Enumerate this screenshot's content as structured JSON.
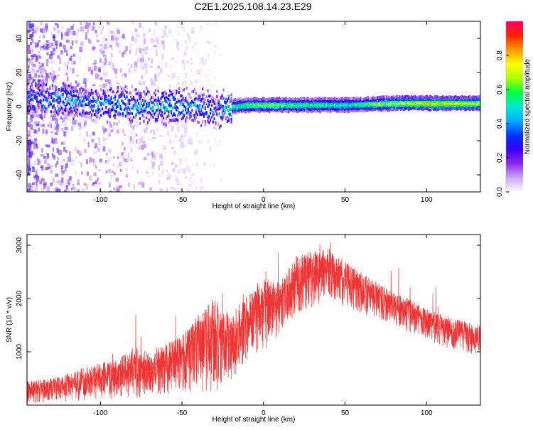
{
  "title": "C2E1.2025.108.14.23.E29",
  "chart_data": [
    {
      "type": "heatmap",
      "xlabel": "Height of straight line (km)",
      "ylabel": "Frequency (Hz)",
      "xlim": [
        -145,
        133
      ],
      "ylim": [
        -50,
        50
      ],
      "xticks": [
        -100,
        -50,
        0,
        50,
        100
      ],
      "yticks": [
        -40,
        -20,
        0,
        20,
        40
      ],
      "colorbar": {
        "label": "Normalized spectral amplitude",
        "range": [
          0,
          1
        ],
        "ticks": [
          "0.0",
          "0.2",
          "0.4",
          "0.6",
          "0.8"
        ],
        "colormap": [
          "#ffffff",
          "#c9a8ff",
          "#8a2be2",
          "#3b00ff",
          "#0033ff",
          "#00b0ff",
          "#00e8d0",
          "#00ff40",
          "#b0ff00",
          "#ffff00",
          "#ff9900",
          "#ff2200",
          "#ff0066"
        ]
      },
      "ridge": {
        "x": [
          -145,
          -120,
          -100,
          -80,
          -60,
          -40,
          -30,
          -20,
          -10,
          0,
          20,
          50,
          80,
          100,
          133
        ],
        "y": [
          5,
          4,
          2,
          1,
          0,
          0,
          -2,
          0,
          1,
          1,
          1,
          1,
          2,
          2,
          2
        ],
        "amplitude": [
          0.35,
          0.45,
          0.4,
          0.42,
          0.45,
          0.4,
          0.3,
          0.55,
          0.6,
          0.65,
          0.6,
          0.55,
          0.7,
          0.8,
          0.75
        ]
      },
      "grid": false
    },
    {
      "type": "line",
      "xlabel": "Height of straight line (km)",
      "ylabel": "SNR (10 * v/v)",
      "xlim": [
        -145,
        133
      ],
      "ylim": [
        0,
        3200
      ],
      "xticks": [
        -100,
        -50,
        0,
        50,
        100
      ],
      "yticks": [
        1000,
        2000,
        3000
      ],
      "series": [
        {
          "color": "#f03535",
          "x": [
            -145,
            -130,
            -120,
            -110,
            -100,
            -90,
            -80,
            -70,
            -60,
            -50,
            -40,
            -30,
            -20,
            -10,
            0,
            10,
            20,
            30,
            40,
            50,
            60,
            70,
            80,
            90,
            100,
            110,
            120,
            133
          ],
          "upper": [
            450,
            500,
            600,
            700,
            800,
            850,
            1100,
            1000,
            1150,
            1300,
            1700,
            2000,
            1700,
            2100,
            2400,
            2300,
            2800,
            2900,
            2950,
            2700,
            2500,
            2300,
            2100,
            2000,
            1800,
            1700,
            1600,
            1500
          ],
          "lower": [
            0,
            50,
            50,
            80,
            100,
            100,
            150,
            100,
            200,
            200,
            150,
            250,
            400,
            800,
            950,
            1300,
            1700,
            1800,
            1900,
            1800,
            1700,
            1600,
            1500,
            1350,
            1200,
            1100,
            1000,
            900
          ]
        }
      ],
      "grid": false
    }
  ]
}
